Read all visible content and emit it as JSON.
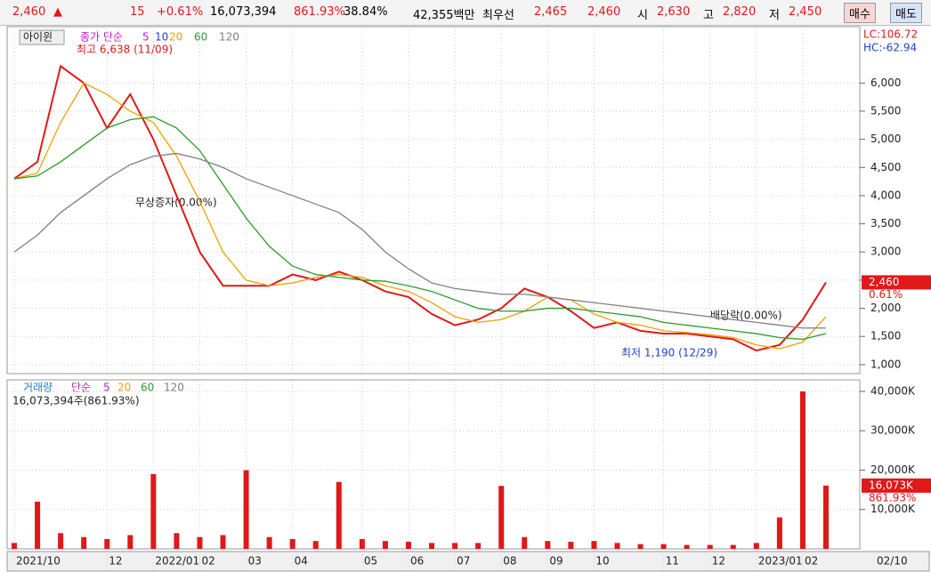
{
  "header": {
    "items": [
      "2,460",
      "▲",
      "15",
      "+0.61%",
      "16,073,394",
      "861.93%",
      "38.84%",
      "42,355백만",
      "최우선",
      "2,465",
      "2,460",
      "시",
      "2,630",
      "고",
      "2,820",
      "저",
      "2,450"
    ],
    "buy": "매수",
    "sell": "매도"
  },
  "chart_data": [
    {
      "type": "line",
      "legend": [
        "아이윈",
        "종가 단순",
        "5",
        "10"
      ],
      "indicators": [
        "LC:106.72",
        "HC:-62.94"
      ],
      "annotations": [
        "최고 6,638 (11/09)",
        "최저 1,190 (12/29)",
        "무상증자(0.00%)",
        "배당락(0.00%)"
      ],
      "price_tag": {
        "value": 2460,
        "label": "2,460",
        "change": "0.61%"
      },
      "ylim": [
        840,
        7000
      ],
      "yticks": [
        {
          "value": 1000,
          "label": "1,000"
        },
        {
          "value": 1500,
          "label": "1,500"
        },
        {
          "value": 2000,
          "label": "2,000"
        },
        {
          "value": 2500,
          "label": "2,500"
        },
        {
          "value": 3000,
          "label": "3,000"
        },
        {
          "value": 3500,
          "label": "3,500"
        },
        {
          "value": 4000,
          "label": "4,000"
        },
        {
          "value": 4500,
          "label": "4,500"
        },
        {
          "value": 5000,
          "label": "5,000"
        },
        {
          "value": 5500,
          "label": "5,500"
        },
        {
          "value": 6000,
          "label": "6,000"
        }
      ],
      "xticks": [
        {
          "value": 0,
          "label": "2021/10"
        },
        {
          "value": 4,
          "label": "12"
        },
        {
          "value": 6,
          "label": "2022/01"
        },
        {
          "value": 8,
          "label": "02"
        },
        {
          "value": 10,
          "label": "03"
        },
        {
          "value": 12,
          "label": "04"
        },
        {
          "value": 15,
          "label": "05"
        },
        {
          "value": 17,
          "label": "06"
        },
        {
          "value": 19,
          "label": "07"
        },
        {
          "value": 21,
          "label": "08"
        },
        {
          "value": 23,
          "label": "09"
        },
        {
          "value": 25,
          "label": "10"
        },
        {
          "value": 28,
          "label": "11"
        },
        {
          "value": 30,
          "label": "12"
        },
        {
          "value": 32,
          "label": "2023/01"
        },
        {
          "value": 34,
          "label": "02"
        }
      ],
      "x_end_label": "02/10",
      "grid": true,
      "series": [
        {
          "color": "#e01818",
          "values": [
            4300,
            4600,
            6300,
            6000,
            5200,
            5800,
            5000,
            4000,
            3000,
            2400,
            2400,
            2400,
            2600,
            2500,
            2650,
            2500,
            2300,
            2200,
            1900,
            1700,
            1800,
            2000,
            2350,
            2200,
            1950,
            1650,
            1750,
            1600,
            1550,
            1550,
            1500,
            1450,
            1250,
            1350,
            1800,
            2460
          ]
        },
        {
          "name": "20",
          "color": "#f0a000",
          "values": [
            4300,
            4400,
            5300,
            6000,
            5800,
            5500,
            5300,
            4700,
            3900,
            3000,
            2500,
            2400,
            2450,
            2550,
            2600,
            2550,
            2400,
            2300,
            2100,
            1850,
            1750,
            1800,
            1950,
            2200,
            2150,
            1900,
            1750,
            1700,
            1600,
            1570,
            1530,
            1480,
            1350,
            1280,
            1400,
            1850
          ]
        },
        {
          "name": "60",
          "color": "#2a9a2a",
          "values": [
            4300,
            4350,
            4600,
            4900,
            5200,
            5350,
            5400,
            5200,
            4800,
            4200,
            3600,
            3100,
            2750,
            2600,
            2550,
            2500,
            2480,
            2400,
            2300,
            2150,
            2000,
            1950,
            1950,
            2000,
            2000,
            1950,
            1900,
            1850,
            1750,
            1700,
            1650,
            1600,
            1550,
            1480,
            1450,
            1550
          ]
        },
        {
          "name": "120",
          "color": "#808080",
          "values": [
            3000,
            3300,
            3700,
            4000,
            4300,
            4550,
            4700,
            4750,
            4650,
            4500,
            4300,
            4150,
            4000,
            3850,
            3700,
            3400,
            3000,
            2700,
            2450,
            2350,
            2300,
            2250,
            2250,
            2200,
            2150,
            2100,
            2050,
            2000,
            1950,
            1900,
            1850,
            1800,
            1750,
            1700,
            1650,
            1650
          ]
        }
      ]
    },
    {
      "type": "bar",
      "legend": [
        "거래량",
        "단순",
        "5",
        "20",
        "60",
        "120"
      ],
      "subtitle": "16,073,394주(861.93%)",
      "price_tag": {
        "value": 16073,
        "label": "16,073K",
        "change": "861.93%"
      },
      "ylim": [
        0,
        42700
      ],
      "yticks": [
        {
          "value": 10000,
          "label": "10,000K"
        },
        {
          "value": 20000,
          "label": "20,000K"
        },
        {
          "value": 30000,
          "label": "30,000K"
        },
        {
          "value": 40000,
          "label": "40,000K"
        }
      ],
      "color": "#e01818",
      "values": [
        1500,
        12000,
        4000,
        3000,
        2500,
        3500,
        19000,
        4000,
        3000,
        3500,
        20000,
        3000,
        2500,
        2000,
        17000,
        2500,
        2000,
        1800,
        1500,
        1500,
        1500,
        16000,
        3000,
        2000,
        1800,
        2000,
        1500,
        1200,
        1200,
        1000,
        1000,
        1000,
        1500,
        8000,
        40000,
        16073
      ]
    }
  ]
}
